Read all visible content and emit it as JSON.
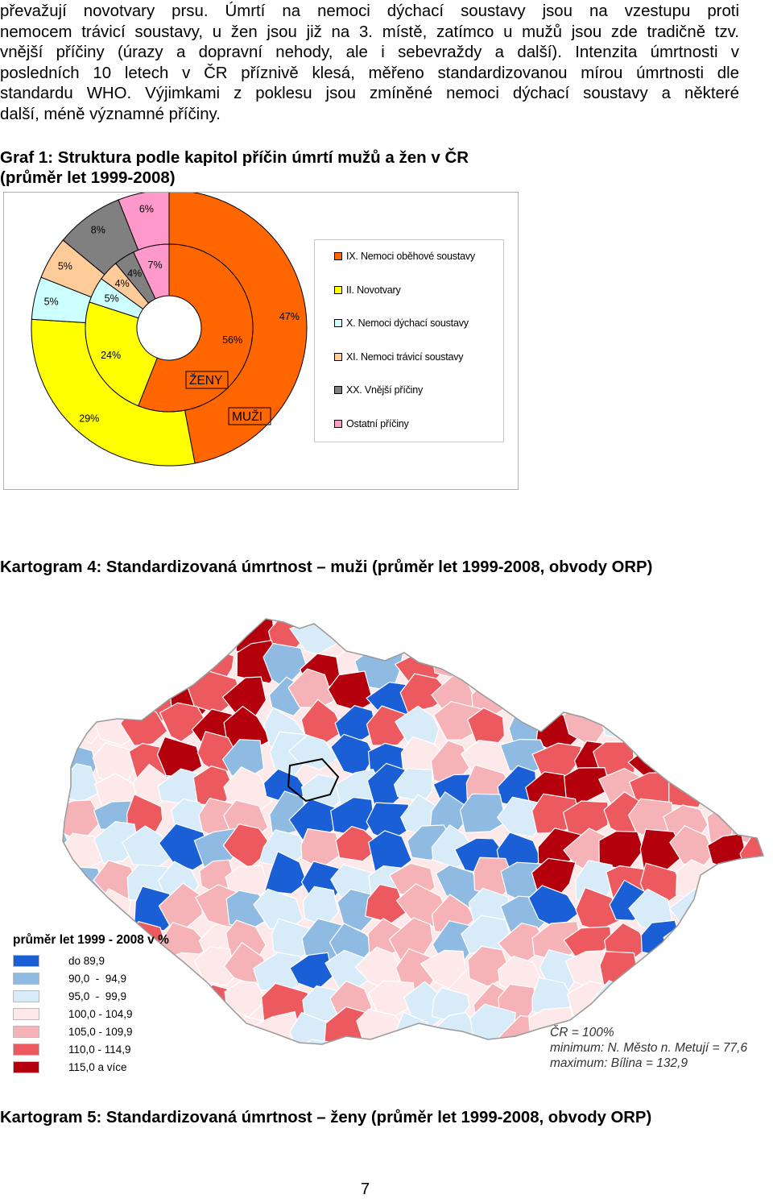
{
  "paragraph": [
    "převažují novotvary prsu. Úmrtí na nemoci dýchací soustavy jsou na vzestupu proti",
    "nemocem trávicí soustavy, u žen jsou již na 3. místě, zatímco u mužů jsou zde tradičně tzv.",
    "vnější příčiny (úrazy a dopravní nehody, ale i sebevraždy a další). Intenzita úmrtnosti v",
    "posledních 10 letech v ČR příznivě klesá, měřeno standardizovanou mírou úmrtnosti dle",
    "standardu WHO. Výjimkami z poklesu jsou zmíněné nemoci dýchací soustavy a některé",
    "další, méně významné příčiny."
  ],
  "graph1_title_line1": "Graf 1: Struktura podle kapitol příčin úmrtí mužů a žen v ČR",
  "graph1_title_line2": "(průměr let 1999-2008)",
  "chart_data": {
    "type": "pie",
    "subtype": "doughnut",
    "categories": [
      "IX. Nemoci oběhové soustavy",
      "II. Novotvary",
      "X. Nemoci dýchací soustavy",
      "XI. Nemoci trávicí soustavy",
      "XX. Vnější příčiny",
      "Ostatní příčiny"
    ],
    "colors": [
      "#ff6600",
      "#ffff00",
      "#ccffff",
      "#ffcc99",
      "#808080",
      "#ff99cc"
    ],
    "series": [
      {
        "name": "MUŽI",
        "values": [
          47,
          29,
          5,
          5,
          8,
          6
        ],
        "labels": [
          "47%",
          "29%",
          "5%",
          "5%",
          "8%",
          "6%"
        ]
      },
      {
        "name": "ŽENY",
        "values": [
          56,
          24,
          5,
          4,
          4,
          7
        ],
        "labels": [
          "56%",
          "24%",
          "5%",
          "4%",
          "4%",
          "7%"
        ]
      }
    ],
    "legend_position": "right"
  },
  "kartogram4_title": "Kartogram 4: Standardizovaná úmrtnost – muži (průměr let 1999-2008, obvody ORP)",
  "map_legend": {
    "title": "průměr let 1999 - 2008 v  %",
    "items": [
      {
        "label": "do 89,9",
        "color": "#1a5fd6"
      },
      {
        "label": "90,0  -  94,9",
        "color": "#8fbbe3"
      },
      {
        "label": "95,0  -  99,9",
        "color": "#d7ecf8"
      },
      {
        "label": "100,0 - 104,9",
        "color": "#fde9ea"
      },
      {
        "label": "105,0 - 109,9",
        "color": "#f5b3b8"
      },
      {
        "label": "110,0 - 114,9",
        "color": "#ec5a5f"
      },
      {
        "label": "115,0 a více",
        "color": "#b3000c"
      }
    ]
  },
  "map_note": [
    "ČR = 100%",
    "minimum: N. Město n. Metují = 77,6",
    "maximum: Bílina = 132,9"
  ],
  "kartogram5_title": "Kartogram 5: Standardizovaná úmrtnost – ženy (průměr let 1999-2008, obvody ORP)",
  "page_number": "7"
}
